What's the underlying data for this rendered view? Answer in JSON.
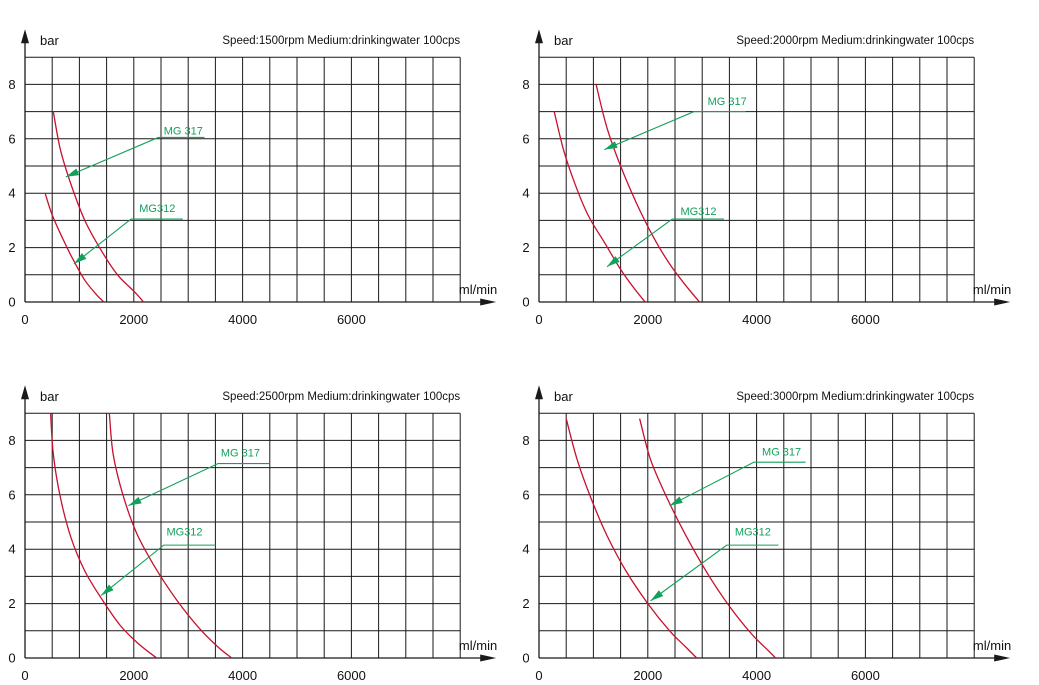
{
  "colors": {
    "grid": "#1a1a1a",
    "curve": "#c8102e",
    "annotation": "#12a05a",
    "text": "#111111"
  },
  "chart_data": [
    {
      "type": "line",
      "header": "Speed:1500rpm   Medium:drinkingwater 100cps",
      "ylabel": "bar",
      "xlabel": "ml/min",
      "xlim": [
        0,
        8000
      ],
      "ylim": [
        0,
        9
      ],
      "x_ticks": [
        "0",
        "2000",
        "4000",
        "6000"
      ],
      "y_ticks": [
        "0",
        "2",
        "4",
        "6",
        "8"
      ],
      "series": [
        {
          "name": "MG312",
          "points": [
            [
              370,
              4.0
            ],
            [
              500,
              3.2
            ],
            [
              700,
              2.3
            ],
            [
              900,
              1.5
            ],
            [
              1100,
              0.8
            ],
            [
              1300,
              0.3
            ],
            [
              1450,
              0
            ]
          ]
        },
        {
          "name": "MG 317",
          "points": [
            [
              520,
              7.0
            ],
            [
              650,
              5.6
            ],
            [
              850,
              4.3
            ],
            [
              1100,
              3.0
            ],
            [
              1400,
              1.9
            ],
            [
              1700,
              1.0
            ],
            [
              2000,
              0.4
            ],
            [
              2180,
              0
            ]
          ]
        }
      ],
      "annotations": [
        {
          "series": "MG 317",
          "label": "MG 317",
          "text_at": [
            2550,
            6.15
          ],
          "line_from": [
            3300,
            6.05
          ],
          "elbow": [
            2450,
            6.05
          ],
          "arrow_to": [
            750,
            4.6
          ]
        },
        {
          "series": "MG312",
          "label": "MG312",
          "text_at": [
            2100,
            3.3
          ],
          "line_from": [
            2900,
            3.05
          ],
          "elbow": [
            1950,
            3.05
          ],
          "arrow_to": [
            900,
            1.4
          ]
        }
      ]
    },
    {
      "type": "line",
      "header": "Speed:2000rpm   Medium:drinkingwater 100cps",
      "ylabel": "bar",
      "xlabel": "ml/min",
      "xlim": [
        0,
        8000
      ],
      "ylim": [
        0,
        9
      ],
      "x_ticks": [
        "0",
        "2000",
        "4000",
        "6000"
      ],
      "y_ticks": [
        "0",
        "2",
        "4",
        "6",
        "8"
      ],
      "series": [
        {
          "name": "MG312",
          "points": [
            [
              280,
              7.0
            ],
            [
              450,
              5.6
            ],
            [
              650,
              4.4
            ],
            [
              900,
              3.2
            ],
            [
              1200,
              2.2
            ],
            [
              1500,
              1.2
            ],
            [
              1750,
              0.5
            ],
            [
              1950,
              0
            ]
          ]
        },
        {
          "name": "MG 317",
          "points": [
            [
              1050,
              8.0
            ],
            [
              1250,
              6.4
            ],
            [
              1500,
              5.0
            ],
            [
              1800,
              3.6
            ],
            [
              2100,
              2.4
            ],
            [
              2400,
              1.4
            ],
            [
              2700,
              0.6
            ],
            [
              2950,
              0
            ]
          ]
        }
      ],
      "annotations": [
        {
          "series": "MG 317",
          "label": "MG 317",
          "text_at": [
            3100,
            7.25
          ],
          "line_from": [
            3800,
            7.0
          ],
          "elbow": [
            2850,
            7.0
          ],
          "arrow_to": [
            1200,
            5.6
          ]
        },
        {
          "series": "MG312",
          "label": "MG312",
          "text_at": [
            2600,
            3.2
          ],
          "line_from": [
            3400,
            3.05
          ],
          "elbow": [
            2450,
            3.05
          ],
          "arrow_to": [
            1250,
            1.3
          ]
        }
      ]
    },
    {
      "type": "line",
      "header": "Speed:2500rpm   Medium:drinkingwater 100cps",
      "ylabel": "bar",
      "xlabel": "ml/min",
      "xlim": [
        0,
        8000
      ],
      "ylim": [
        0,
        9
      ],
      "x_ticks": [
        "0",
        "2000",
        "4000",
        "6000"
      ],
      "y_ticks": [
        "0",
        "2",
        "4",
        "6",
        "8"
      ],
      "series": [
        {
          "name": "MG312",
          "points": [
            [
              470,
              9.0
            ],
            [
              520,
              7.5
            ],
            [
              650,
              5.9
            ],
            [
              850,
              4.4
            ],
            [
              1100,
              3.2
            ],
            [
              1400,
              2.2
            ],
            [
              1750,
              1.2
            ],
            [
              2100,
              0.5
            ],
            [
              2420,
              0
            ]
          ]
        },
        {
          "name": "MG 317",
          "points": [
            [
              1550,
              9.0
            ],
            [
              1620,
              7.5
            ],
            [
              1800,
              6.0
            ],
            [
              2050,
              4.6
            ],
            [
              2400,
              3.3
            ],
            [
              2800,
              2.1
            ],
            [
              3200,
              1.1
            ],
            [
              3550,
              0.4
            ],
            [
              3800,
              0
            ]
          ]
        }
      ],
      "annotations": [
        {
          "series": "MG 317",
          "label": "MG 317",
          "text_at": [
            3600,
            7.4
          ],
          "line_from": [
            4500,
            7.15
          ],
          "elbow": [
            3550,
            7.15
          ],
          "arrow_to": [
            1900,
            5.6
          ]
        },
        {
          "series": "MG312",
          "label": "MG312",
          "text_at": [
            2600,
            4.5
          ],
          "line_from": [
            3500,
            4.15
          ],
          "elbow": [
            2550,
            4.15
          ],
          "arrow_to": [
            1400,
            2.3
          ]
        }
      ]
    },
    {
      "type": "line",
      "header": "Speed:3000rpm   Medium:drinkingwater 100cps",
      "ylabel": "bar",
      "xlabel": "ml/min",
      "xlim": [
        0,
        8000
      ],
      "ylim": [
        0,
        9
      ],
      "x_ticks": [
        "0",
        "2000",
        "4000",
        "6000"
      ],
      "y_ticks": [
        "0",
        "2",
        "4",
        "6",
        "8"
      ],
      "series": [
        {
          "name": "MG312",
          "points": [
            [
              500,
              8.8
            ],
            [
              700,
              7.3
            ],
            [
              950,
              5.9
            ],
            [
              1250,
              4.5
            ],
            [
              1600,
              3.2
            ],
            [
              2000,
              2.0
            ],
            [
              2400,
              1.0
            ],
            [
              2700,
              0.4
            ],
            [
              2900,
              0
            ]
          ]
        },
        {
          "name": "MG 317",
          "points": [
            [
              1850,
              8.8
            ],
            [
              2050,
              7.3
            ],
            [
              2350,
              5.9
            ],
            [
              2700,
              4.5
            ],
            [
              3100,
              3.1
            ],
            [
              3500,
              1.9
            ],
            [
              3900,
              0.9
            ],
            [
              4200,
              0.3
            ],
            [
              4350,
              0
            ]
          ]
        }
      ],
      "annotations": [
        {
          "series": "MG 317",
          "label": "MG 317",
          "text_at": [
            4100,
            7.45
          ],
          "line_from": [
            4900,
            7.2
          ],
          "elbow": [
            3950,
            7.2
          ],
          "arrow_to": [
            2400,
            5.6
          ]
        },
        {
          "series": "MG312",
          "label": "MG312",
          "text_at": [
            3600,
            4.5
          ],
          "line_from": [
            4400,
            4.15
          ],
          "elbow": [
            3450,
            4.15
          ],
          "arrow_to": [
            2050,
            2.1
          ]
        }
      ]
    }
  ]
}
